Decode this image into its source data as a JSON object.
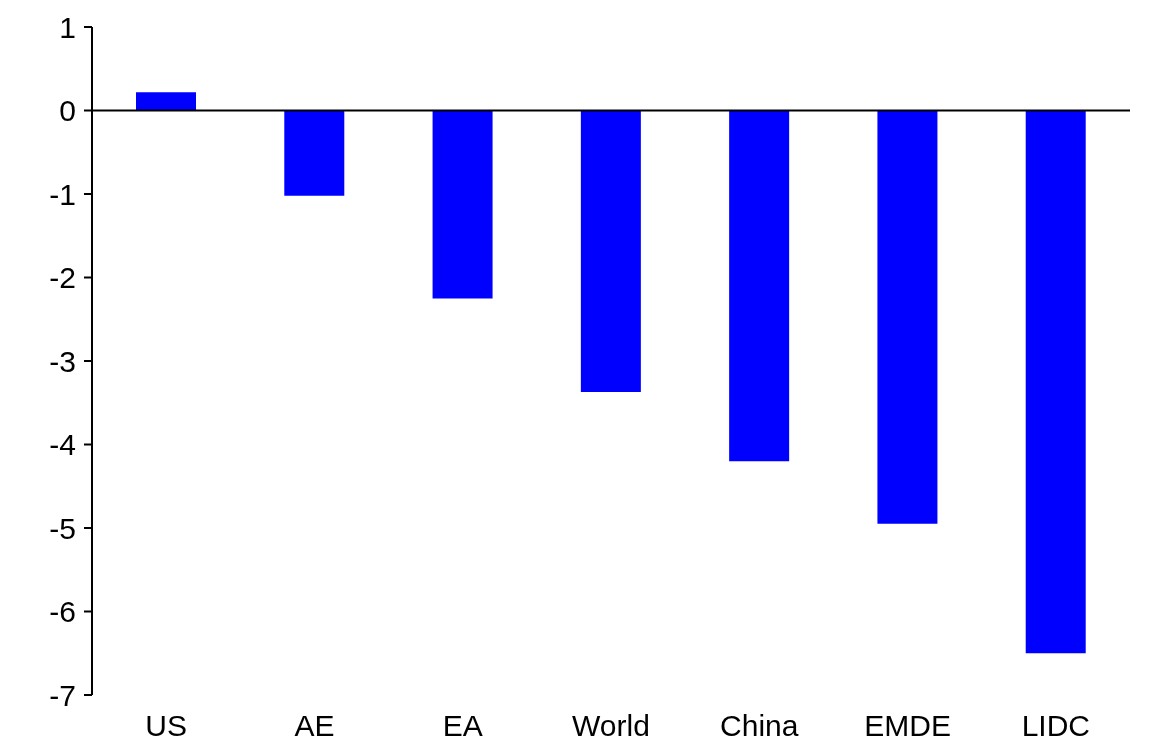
{
  "chart_data": {
    "type": "bar",
    "categories": [
      "US",
      "AE",
      "EA",
      "World",
      "China",
      "EMDE",
      "LIDC"
    ],
    "values": [
      0.22,
      -1.02,
      -2.25,
      -3.37,
      -4.2,
      -4.95,
      -6.5
    ],
    "color": "#0000ff",
    "ylim": [
      -7,
      1
    ],
    "yticks": [
      -7,
      -6,
      -5,
      -4,
      -3,
      -2,
      -1,
      0,
      1
    ],
    "legend": false
  }
}
